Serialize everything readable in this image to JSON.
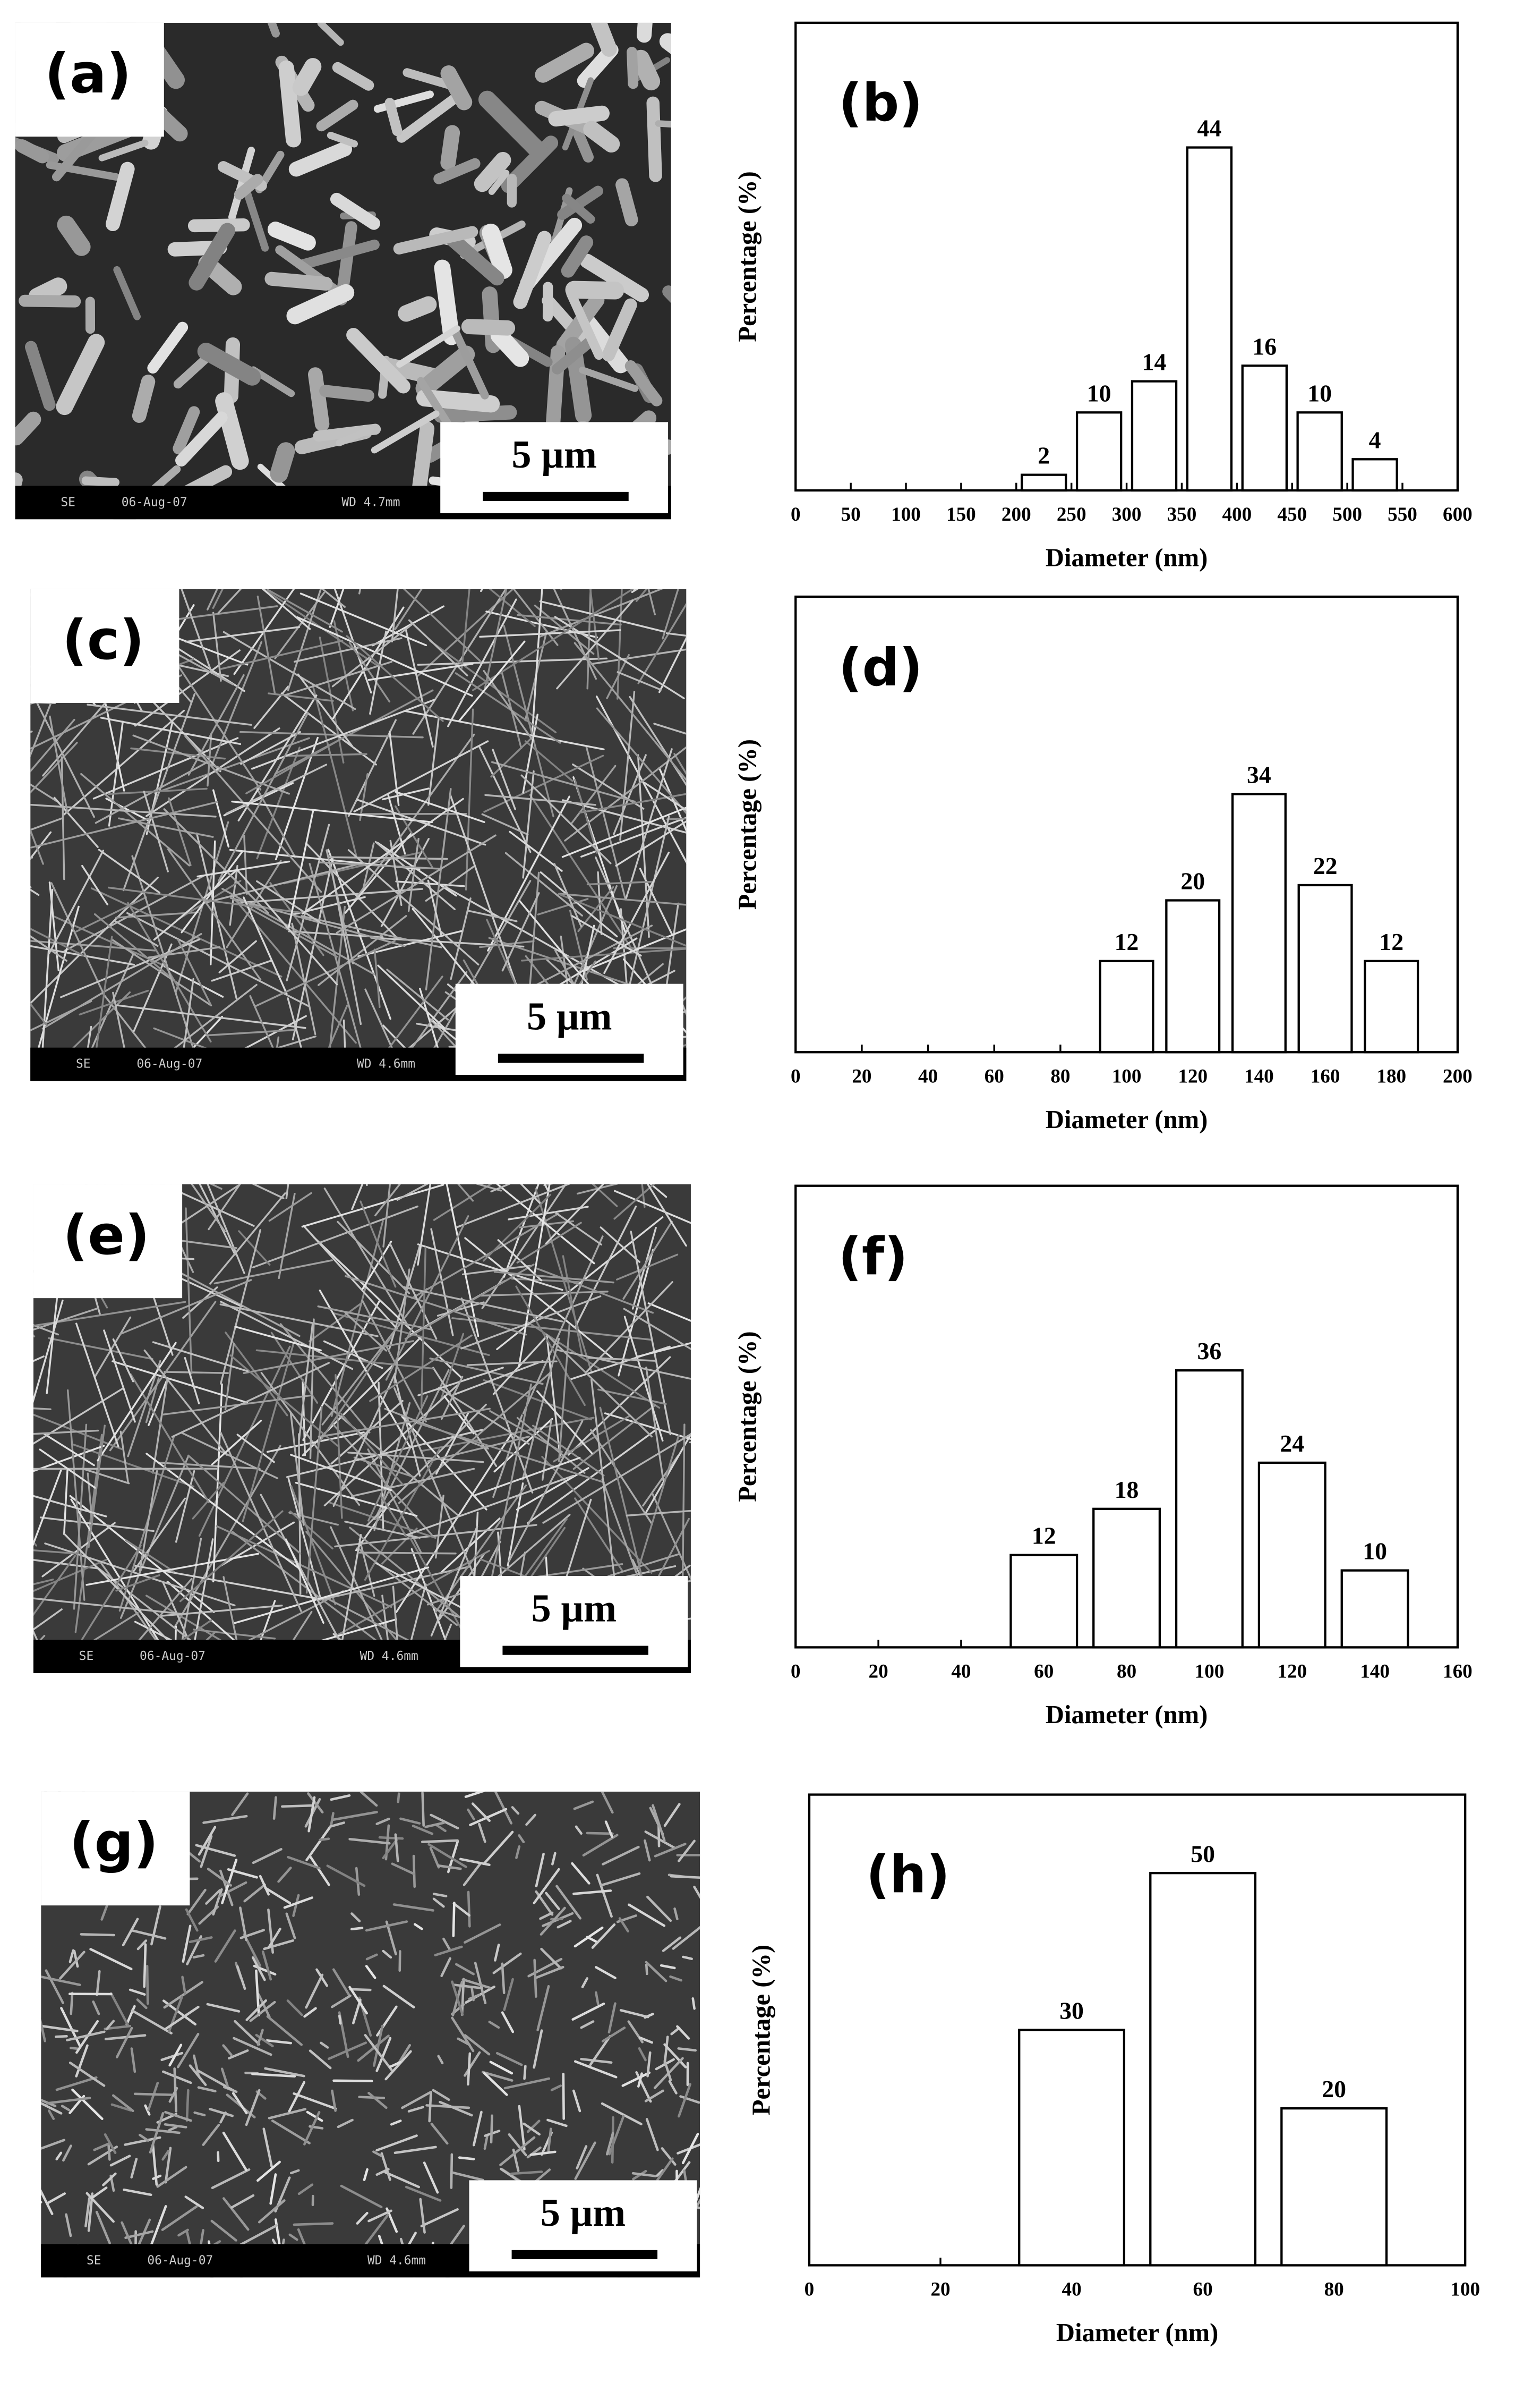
{
  "chart_data": [
    {
      "type": "bar",
      "panel_label": "(b)",
      "x_label": "Diameter (nm)",
      "y_label": "Percentage (%)",
      "x": [
        225,
        275,
        325,
        375,
        425,
        475,
        525
      ],
      "values": [
        2,
        10,
        14,
        44,
        16,
        10,
        4
      ],
      "color": "#ffffff",
      "xlim": [
        0,
        600
      ],
      "xticks": [
        0,
        50,
        100,
        150,
        200,
        250,
        300,
        350,
        400,
        450,
        500,
        550,
        600
      ],
      "ylim": [
        0,
        60
      ]
    },
    {
      "type": "bar",
      "panel_label": "(d)",
      "x_label": "Diameter (nm)",
      "y_label": "Percentage (%)",
      "x": [
        100,
        120,
        140,
        160,
        180
      ],
      "values": [
        12,
        20,
        34,
        22,
        12
      ],
      "color": "#ffffff",
      "xlim": [
        0,
        200
      ],
      "xticks": [
        0,
        20,
        40,
        60,
        80,
        100,
        120,
        140,
        160,
        180,
        200
      ],
      "ylim": [
        0,
        60
      ]
    },
    {
      "type": "bar",
      "panel_label": "(f)",
      "x_label": "Diameter (nm)",
      "y_label": "Percentage (%)",
      "x": [
        60,
        80,
        100,
        120,
        140
      ],
      "values": [
        12,
        18,
        36,
        24,
        10
      ],
      "color": "#ffffff",
      "xlim": [
        0,
        160
      ],
      "xticks": [
        0,
        20,
        40,
        60,
        80,
        100,
        120,
        140,
        160
      ],
      "ylim": [
        0,
        60
      ]
    },
    {
      "type": "bar",
      "panel_label": "(h)",
      "x_label": "Diameter (nm)",
      "y_label": "Percentage (%)",
      "x": [
        40,
        60,
        80
      ],
      "values": [
        30,
        50,
        20
      ],
      "color": "#ffffff",
      "xlim": [
        0,
        100
      ],
      "xticks": [
        0,
        20,
        40,
        60,
        80,
        100
      ],
      "ylim": [
        0,
        60
      ]
    }
  ],
  "images": [
    {
      "label": "(a)",
      "scale_bar": "5 µm",
      "info": [
        "SE",
        "06-Aug-07",
        "WD 4.7mm"
      ]
    },
    {
      "label": "(c)",
      "scale_bar": "5 µm",
      "info": [
        "SE",
        "06-Aug-07",
        "WD 4.6mm"
      ]
    },
    {
      "label": "(e)",
      "scale_bar": "5 µm",
      "info": [
        "SE",
        "06-Aug-07",
        "WD 4.6mm"
      ]
    },
    {
      "label": "(g)",
      "scale_bar": "5 µm",
      "info": [
        "SE",
        "06-Aug-07",
        "WD 4.6mm"
      ]
    }
  ]
}
